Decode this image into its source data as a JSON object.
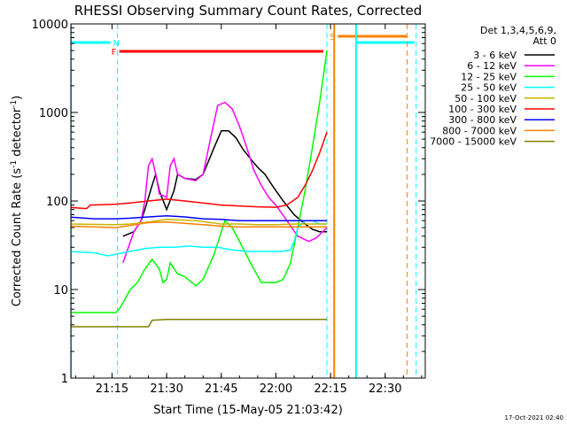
{
  "chart_data": {
    "type": "line",
    "title": "RHESSI Observing Summary Count Rates, Corrected",
    "xlabel": "Start Time (15-May-05 21:03:42)",
    "ylabel_main": "Corrected Count Rate (s",
    "ylabel_sup1": "-1",
    "ylabel_mid": " detector",
    "ylabel_sup2": "-1",
    "ylabel_end": ")",
    "y_scale": "log",
    "ylim": [
      1,
      10000
    ],
    "xlim": [
      "21:03:42",
      "22:41:00"
    ],
    "x_ticks": [
      "21:15",
      "21:30",
      "21:45",
      "22:00",
      "22:15",
      "22:30"
    ],
    "y_ticks": [
      "1",
      "10",
      "100",
      "1000",
      "10000"
    ],
    "legend_title_1": "Det 1,3,4,5,6,9,",
    "legend_title_2": "Att 0",
    "legend_position": "right",
    "timestamp": "17-Oct-2021 02:40",
    "flags": [
      {
        "label": "N",
        "color": "#00ffff",
        "segments": [
          [
            "21:03:42",
            "21:14:30"
          ],
          [
            "22:22:00",
            "22:38:00"
          ]
        ]
      },
      {
        "label": "F",
        "color": "#ff0000",
        "segments": [
          [
            "21:17:00",
            "22:13:00"
          ]
        ]
      },
      {
        "label": "S",
        "color": "#ff8000",
        "segments": [
          [
            "22:17:00",
            "22:36:00"
          ]
        ]
      }
    ],
    "vlines_dashed": [
      {
        "time": "21:16:30",
        "color": "#00ffff"
      },
      {
        "time": "22:14:00",
        "color": "#00ffff"
      },
      {
        "time": "22:36:00",
        "color": "#ff8000"
      },
      {
        "time": "22:38:30",
        "color": "#00ffff"
      }
    ],
    "vlines_solid": [
      {
        "time": "21:03:42",
        "color": "#00ffff"
      },
      {
        "time": "22:16:00",
        "color": "#ff8000"
      },
      {
        "time": "22:22:00",
        "color": "#00ffff"
      }
    ],
    "series": [
      {
        "name": "3 - 6 keV",
        "color": "#000000",
        "x": [
          "21:18",
          "21:21",
          "21:23",
          "21:24",
          "21:26",
          "21:27",
          "21:28",
          "21:30",
          "21:32",
          "21:33",
          "21:35",
          "21:38",
          "21:40",
          "21:43",
          "21:45",
          "21:47",
          "21:49",
          "21:51",
          "21:53",
          "21:55",
          "21:57",
          "21:59",
          "22:02",
          "22:05",
          "22:08",
          "22:10",
          "22:12",
          "22:14"
        ],
        "y": [
          40,
          45,
          60,
          80,
          150,
          200,
          130,
          80,
          130,
          200,
          180,
          175,
          200,
          400,
          620,
          620,
          520,
          380,
          300,
          240,
          200,
          150,
          100,
          70,
          55,
          48,
          45,
          45
        ]
      },
      {
        "name": "6 - 12 keV",
        "color": "#ff00ff",
        "x": [
          "21:18",
          "21:21",
          "21:23",
          "21:24",
          "21:25",
          "21:26",
          "21:27",
          "21:28",
          "21:30",
          "21:31",
          "21:32",
          "21:33",
          "21:35",
          "21:38",
          "21:40",
          "21:42",
          "21:44",
          "21:46",
          "21:48",
          "21:50",
          "21:52",
          "21:54",
          "21:56",
          "21:58",
          "22:00",
          "22:03",
          "22:06",
          "22:09",
          "22:11",
          "22:14"
        ],
        "y": [
          20,
          45,
          60,
          100,
          250,
          300,
          200,
          120,
          110,
          250,
          300,
          200,
          180,
          170,
          200,
          500,
          1200,
          1300,
          1100,
          700,
          400,
          220,
          150,
          110,
          90,
          60,
          40,
          35,
          38,
          50
        ]
      },
      {
        "name": "12 - 25 keV",
        "color": "#00ff00",
        "x": [
          "21:03",
          "21:16",
          "21:17",
          "21:20",
          "21:22",
          "21:24",
          "21:26",
          "21:28",
          "21:29",
          "21:30",
          "21:31",
          "21:33",
          "21:35",
          "21:38",
          "21:40",
          "21:43",
          "21:46",
          "21:48",
          "21:50",
          "21:53",
          "21:56",
          "22:00",
          "22:02",
          "22:04",
          "22:06",
          "22:08",
          "22:10",
          "22:12",
          "22:14"
        ],
        "y": [
          5.5,
          5.5,
          6,
          10,
          12,
          17,
          22,
          17,
          12,
          13,
          20,
          15,
          14,
          11,
          13,
          25,
          60,
          50,
          35,
          20,
          12,
          12,
          13,
          20,
          50,
          130,
          400,
          1300,
          5000
        ]
      },
      {
        "name": "25 - 50 keV",
        "color": "#00ffff",
        "x": [
          "21:03",
          "21:10",
          "21:14",
          "21:16",
          "21:20",
          "21:24",
          "21:28",
          "21:32",
          "21:36",
          "21:40",
          "21:44",
          "21:48",
          "21:52",
          "21:56",
          "22:00",
          "22:02",
          "22:04",
          "22:05",
          "22:06",
          "22:08",
          "22:10",
          "22:12",
          "22:14"
        ],
        "y": [
          27,
          26,
          24,
          25,
          27,
          29,
          30,
          30,
          31,
          30,
          30,
          28,
          27,
          27,
          27,
          27,
          28,
          35,
          50,
          60,
          60,
          55,
          55
        ]
      },
      {
        "name": "50 - 100 keV",
        "color": "#c8b400",
        "x": [
          "21:03",
          "21:16",
          "21:20",
          "21:25",
          "21:30",
          "21:38",
          "21:45",
          "21:50",
          "21:55",
          "22:00",
          "22:05",
          "22:10",
          "22:14"
        ],
        "y": [
          55,
          54,
          55,
          58,
          62,
          60,
          55,
          55,
          54,
          54,
          55,
          55,
          55
        ]
      },
      {
        "name": "100 - 300 keV",
        "color": "#ff0000",
        "x": [
          "21:03",
          "21:08",
          "21:09",
          "21:16",
          "21:20",
          "21:25",
          "21:30",
          "21:35",
          "21:40",
          "21:45",
          "21:50",
          "21:55",
          "22:00",
          "22:03",
          "22:06",
          "22:08",
          "22:10",
          "22:12",
          "22:14"
        ],
        "y": [
          85,
          82,
          90,
          92,
          95,
          100,
          105,
          100,
          95,
          90,
          88,
          86,
          85,
          90,
          110,
          150,
          220,
          350,
          600
        ]
      },
      {
        "name": "300 - 800 keV",
        "color": "#0000ff",
        "x": [
          "21:03",
          "21:10",
          "21:16",
          "21:20",
          "21:25",
          "21:30",
          "21:35",
          "21:40",
          "21:45",
          "21:50",
          "21:55",
          "22:00",
          "22:05",
          "22:10",
          "22:14"
        ],
        "y": [
          66,
          63,
          63,
          64,
          66,
          68,
          66,
          63,
          62,
          60,
          60,
          60,
          60,
          60,
          60
        ]
      },
      {
        "name": "800 - 7000 keV",
        "color": "#ff8000",
        "x": [
          "21:03",
          "21:10",
          "21:16",
          "21:20",
          "21:25",
          "21:30",
          "21:35",
          "21:40",
          "21:45",
          "21:50",
          "21:55",
          "22:00",
          "22:05",
          "22:10",
          "22:14"
        ],
        "y": [
          52,
          51,
          50,
          53,
          57,
          58,
          56,
          54,
          52,
          51,
          51,
          51,
          51,
          51,
          51
        ]
      },
      {
        "name": "7000 - 15000 keV",
        "color": "#808000",
        "x": [
          "21:03",
          "21:10",
          "21:16",
          "21:20",
          "21:25",
          "21:26",
          "21:30",
          "21:35",
          "21:40",
          "21:45",
          "21:50",
          "21:55",
          "22:00",
          "22:05",
          "22:10",
          "22:14"
        ],
        "y": [
          3.8,
          3.8,
          3.8,
          3.8,
          3.8,
          4.5,
          4.6,
          4.6,
          4.6,
          4.6,
          4.6,
          4.6,
          4.6,
          4.6,
          4.6,
          4.6
        ]
      }
    ]
  }
}
